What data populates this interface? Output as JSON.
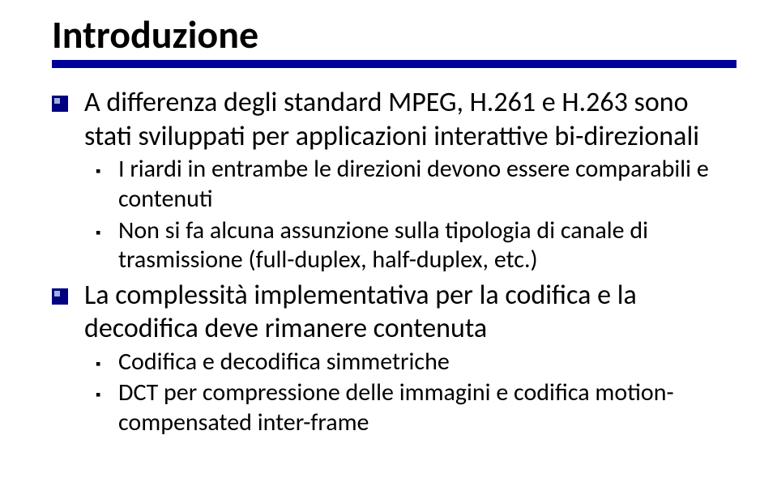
{
  "title": "Introduzione",
  "rule_color": "#000099",
  "lvl1_bullet_color": "#000080",
  "items": [
    {
      "text": "A differenza degli standard MPEG, H.261 e H.263 sono stati sviluppati per applicazioni interattive bi-direzionali",
      "sub": [
        {
          "text": "I riardi in entrambe le direzioni devono essere comparabili e contenuti"
        },
        {
          "text": "Non si fa alcuna assunzione sulla tipologia di canale di trasmissione (full-duplex, half-duplex, etc.)"
        }
      ]
    },
    {
      "text": "La complessità implementativa per la codifica e la decodifica deve rimanere contenuta",
      "sub": [
        {
          "text": "Codifica e decodifica simmetriche"
        },
        {
          "text": "DCT per compressione delle immagini e codifica motion-compensated inter-frame"
        }
      ]
    }
  ]
}
